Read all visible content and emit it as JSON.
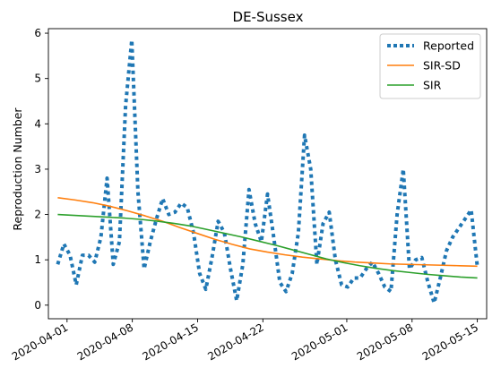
{
  "chart_data": {
    "type": "line",
    "title": "DE-Sussex",
    "xlabel": "",
    "ylabel": "Reproduction Number",
    "x_start": "2020-03-31",
    "x_end": "2020-05-15",
    "xlim": [
      "2020-03-30",
      "2020-05-16"
    ],
    "ylim": [
      -0.3,
      6.1
    ],
    "yticks": [
      0,
      1,
      2,
      3,
      4,
      5,
      6
    ],
    "xticks": [
      "2020-04-01",
      "2020-04-08",
      "2020-04-15",
      "2020-04-22",
      "2020-05-01",
      "2020-05-08",
      "2020-05-15"
    ],
    "legend_position": "top-right",
    "grid": false,
    "series": [
      {
        "name": "Reported",
        "style": "dotted",
        "color": "#1f77b4",
        "values": [
          0.9,
          1.35,
          1.1,
          0.45,
          1.1,
          1.1,
          0.95,
          1.5,
          2.8,
          0.9,
          1.4,
          4.4,
          5.85,
          2.5,
          0.8,
          1.4,
          1.9,
          2.35,
          2.0,
          2.05,
          2.25,
          2.15,
          1.6,
          0.7,
          0.35,
          1.05,
          1.85,
          1.6,
          0.8,
          0.1,
          0.9,
          2.55,
          1.8,
          1.4,
          2.45,
          1.5,
          0.5,
          0.3,
          0.7,
          1.6,
          3.75,
          3.0,
          0.9,
          1.8,
          2.05,
          1.0,
          0.45,
          0.4,
          0.6,
          0.6,
          0.8,
          0.95,
          0.7,
          0.4,
          0.3,
          2.0,
          3.0,
          0.8,
          1.0,
          1.05,
          0.5,
          0.05,
          0.6,
          1.2,
          1.5,
          1.7,
          1.9,
          2.1,
          0.85
        ]
      },
      {
        "name": "SIR-SD",
        "style": "solid",
        "color": "#ff7f0e",
        "values": [
          2.37,
          2.32,
          2.26,
          2.18,
          2.08,
          1.97,
          1.85,
          1.71,
          1.58,
          1.45,
          1.34,
          1.24,
          1.17,
          1.11,
          1.06,
          1.02,
          0.98,
          0.95,
          0.93,
          0.91,
          0.9,
          0.89,
          0.88,
          0.87,
          0.86
        ]
      },
      {
        "name": "SIR",
        "style": "solid",
        "color": "#2ca02c",
        "values": [
          2.0,
          1.98,
          1.96,
          1.94,
          1.92,
          1.89,
          1.85,
          1.8,
          1.74,
          1.66,
          1.58,
          1.5,
          1.41,
          1.32,
          1.22,
          1.12,
          1.02,
          0.94,
          0.87,
          0.81,
          0.76,
          0.72,
          0.68,
          0.65,
          0.62,
          0.6
        ]
      }
    ]
  }
}
